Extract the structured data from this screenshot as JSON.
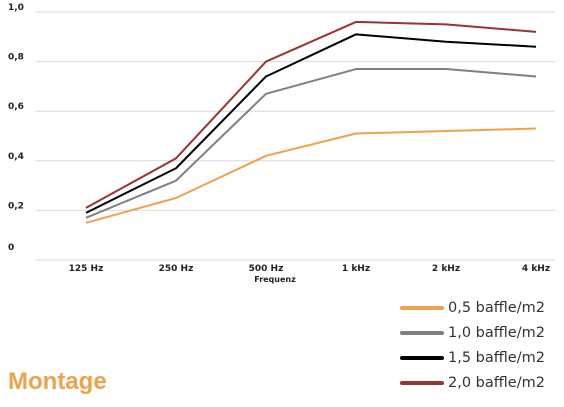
{
  "chart_data": {
    "type": "line",
    "categories": [
      "125 Hz",
      "250 Hz",
      "500 Hz",
      "1 kHz",
      "2 kHz",
      "4 kHz"
    ],
    "xlabel": "Frequenz",
    "ylabel": "",
    "ylim": [
      0,
      1.0
    ],
    "yticks": [
      "0",
      "0,2",
      "0,4",
      "0,6",
      "0,8",
      "1,0"
    ],
    "grid": true,
    "legend_position": "bottom-right",
    "series": [
      {
        "name": "0,5 baffle/m2",
        "color": "#f0a24a",
        "values": [
          0.15,
          0.25,
          0.42,
          0.51,
          0.52,
          0.53
        ]
      },
      {
        "name": "1,0 baffle/m2",
        "color": "#808080",
        "values": [
          0.17,
          0.32,
          0.67,
          0.77,
          0.77,
          0.74
        ]
      },
      {
        "name": "1,5 baffle/m2",
        "color": "#000000",
        "values": [
          0.19,
          0.37,
          0.74,
          0.91,
          0.88,
          0.86
        ]
      },
      {
        "name": "2,0 baffle/m2",
        "color": "#9b3330",
        "values": [
          0.21,
          0.41,
          0.8,
          0.96,
          0.95,
          0.92
        ]
      }
    ]
  },
  "footer": {
    "title": "Montage"
  }
}
